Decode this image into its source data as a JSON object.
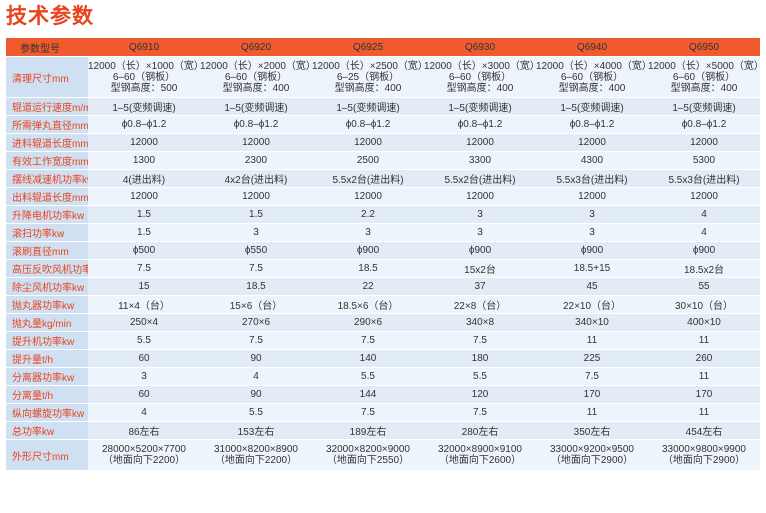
{
  "title": "技术参数",
  "header": {
    "label": "参数型号",
    "models": [
      "Q6910",
      "Q6920",
      "Q6925",
      "Q6930",
      "Q6940",
      "Q6950"
    ]
  },
  "rows": [
    {
      "label": "清理尺寸mm",
      "values": [
        [
          "12000（长）×1000（宽）",
          "6–60（钢板）",
          "型钢高度：500"
        ],
        [
          "12000（长）×2000（宽）",
          "6–60（钢板）",
          "型钢高度：400"
        ],
        [
          "12000（长）×2500（宽）",
          "6–25（钢板）",
          "型钢高度：400"
        ],
        [
          "12000（长）×3000（宽）",
          "6–60（钢板）",
          "型钢高度：400"
        ],
        [
          "12000（长）×4000（宽）",
          "6–60（钢板）",
          "型钢高度：400"
        ],
        [
          "12000（长）×5000（宽）",
          "6–60（钢板）",
          "型钢高度：400"
        ]
      ]
    },
    {
      "label": "辊道运行速度m/min",
      "values": [
        "1–5(变频调速)",
        "1–5(变频调速)",
        "1–5(变频调速)",
        "1–5(变频调速)",
        "1–5(变频调速)",
        "1–5(变频调速)"
      ]
    },
    {
      "label": "所需弹丸直径mm",
      "values": [
        "ϕ0.8–ϕ1.2",
        "ϕ0.8–ϕ1.2",
        "ϕ0.8–ϕ1.2",
        "ϕ0.8–ϕ1.2",
        "ϕ0.8–ϕ1.2",
        "ϕ0.8–ϕ1.2"
      ]
    },
    {
      "label": "进料辊道长度mm",
      "values": [
        "12000",
        "12000",
        "12000",
        "12000",
        "12000",
        "12000"
      ]
    },
    {
      "label": "有效工作宽度mm",
      "values": [
        "1300",
        "2300",
        "2500",
        "3300",
        "4300",
        "5300"
      ]
    },
    {
      "label": "摆线减速机功率kw",
      "values": [
        "4(进出料)",
        "4x2台(进出料)",
        "5.5x2台(进出料)",
        "5.5x2台(进出料)",
        "5.5x3台(进出料)",
        "5.5x3台(进出料)"
      ]
    },
    {
      "label": "出料辊道长度mm",
      "values": [
        "12000",
        "12000",
        "12000",
        "12000",
        "12000",
        "12000"
      ]
    },
    {
      "label": "升降电机功率kw",
      "values": [
        "1.5",
        "1.5",
        "2.2",
        "3",
        "3",
        "4"
      ]
    },
    {
      "label": "滚扫功率kw",
      "values": [
        "1.5",
        "3",
        "3",
        "3",
        "3",
        "4"
      ]
    },
    {
      "label": "滚刷直径mm",
      "values": [
        "ϕ500",
        "ϕ550",
        "ϕ900",
        "ϕ900",
        "ϕ900",
        "ϕ900"
      ]
    },
    {
      "label": "高压反吹风机功率kw",
      "values": [
        "7.5",
        "7.5",
        "18.5",
        "15x2台",
        "18.5+15",
        "18.5x2台"
      ]
    },
    {
      "label": "除尘风机功率kw",
      "values": [
        "15",
        "18.5",
        "22",
        "37",
        "45",
        "55"
      ]
    },
    {
      "label": "抛丸器功率kw",
      "values": [
        "11×4（台）",
        "15×6（台）",
        "18.5×6（台）",
        "22×8（台）",
        "22×10（台）",
        "30×10（台）"
      ]
    },
    {
      "label": "抛丸量kg/min",
      "values": [
        "250×4",
        "270×6",
        "290×6",
        "340×8",
        "340×10",
        "400×10"
      ]
    },
    {
      "label": "提升机功率kw",
      "values": [
        "5.5",
        "7.5",
        "7.5",
        "7.5",
        "11",
        "11"
      ]
    },
    {
      "label": "提升量t/h",
      "values": [
        "60",
        "90",
        "140",
        "180",
        "225",
        "260"
      ]
    },
    {
      "label": "分离器功率kw",
      "values": [
        "3",
        "4",
        "5.5",
        "5.5",
        "7.5",
        "11"
      ]
    },
    {
      "label": "分离量t/h",
      "values": [
        "60",
        "90",
        "144",
        "120",
        "170",
        "170"
      ]
    },
    {
      "label": "纵向螺旋功率kw",
      "values": [
        "4",
        "5.5",
        "7.5",
        "7.5",
        "11",
        "11"
      ]
    },
    {
      "label": "总功率kw",
      "values": [
        "86左右",
        "153左右",
        "189左右",
        "280左右",
        "350左右",
        "454左右"
      ]
    },
    {
      "label": "外形尺寸mm",
      "values": [
        [
          "28000×5200×7700",
          "（地面向下2200）"
        ],
        [
          "31000×8200×8900",
          "（地面向下2200）"
        ],
        [
          "32000×8200×9000",
          "（地面向下2550）"
        ],
        [
          "32000×8900×9100",
          "（地面向下2600）"
        ],
        [
          "33000×9200×9500",
          "（地面向下2900）"
        ],
        [
          "33000×9800×9900",
          "（地面向下2900）"
        ]
      ]
    }
  ]
}
